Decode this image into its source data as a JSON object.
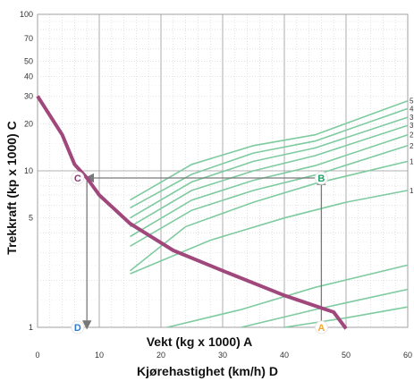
{
  "chart_data": {
    "type": "line",
    "title": "",
    "ylabel": "Trekkraft (kp x 1000) C",
    "xlabel_primary": "Vekt (kg x 1000) A",
    "xlabel_secondary": "Kjørehastighet (km/h) D",
    "yscale": "log",
    "ylim": [
      1,
      100
    ],
    "xlim": [
      0,
      60
    ],
    "x_ticks": [
      "0",
      "10",
      "20",
      "30",
      "40",
      "50",
      "60"
    ],
    "y_ticks": [
      {
        "value": 1,
        "label": "1"
      },
      {
        "value": 5,
        "label": "5"
      },
      {
        "value": 10,
        "label": "10"
      },
      {
        "value": 20,
        "label": "20"
      },
      {
        "value": 30,
        "label": "30"
      },
      {
        "value": 40,
        "label": "40"
      },
      {
        "value": 50,
        "label": "50"
      },
      {
        "value": 70,
        "label": "70"
      },
      {
        "value": 100,
        "label": "100"
      }
    ],
    "grid": true,
    "tractive_effort_curve": {
      "color": "#a0487c",
      "points": [
        [
          0,
          30
        ],
        [
          4,
          17
        ],
        [
          6,
          11
        ],
        [
          8,
          9
        ],
        [
          10,
          7
        ],
        [
          15,
          4.6
        ],
        [
          22,
          3.1
        ],
        [
          30,
          2.3
        ],
        [
          40,
          1.6
        ],
        [
          48,
          1.25
        ],
        [
          50,
          0.98
        ]
      ]
    },
    "gradient_lines": {
      "color": "#7fcba0",
      "end_labels": [
        "5",
        "4",
        "3",
        "3",
        "2",
        "2",
        "1",
        "1"
      ],
      "lines": [
        [
          [
            15,
            6.5
          ],
          [
            25,
            11
          ],
          [
            35,
            14.5
          ],
          [
            45,
            17
          ],
          [
            60,
            28
          ]
        ],
        [
          [
            15,
            5.8
          ],
          [
            25,
            9.5
          ],
          [
            35,
            13
          ],
          [
            45,
            15.5
          ],
          [
            60,
            25
          ]
        ],
        [
          [
            15,
            5.0
          ],
          [
            25,
            8.5
          ],
          [
            35,
            11.5
          ],
          [
            45,
            14
          ],
          [
            60,
            22
          ]
        ],
        [
          [
            15,
            4.4
          ],
          [
            25,
            7.5
          ],
          [
            35,
            10
          ],
          [
            45,
            12.5
          ],
          [
            60,
            19.5
          ]
        ],
        [
          [
            15,
            3.8
          ],
          [
            25,
            6.5
          ],
          [
            35,
            8.7
          ],
          [
            45,
            10.8
          ],
          [
            60,
            17
          ]
        ],
        [
          [
            15,
            3.3
          ],
          [
            25,
            5.6
          ],
          [
            35,
            7.5
          ],
          [
            45,
            9.4
          ],
          [
            60,
            14.5
          ]
        ],
        [
          [
            15,
            2.3
          ],
          [
            24,
            4.4
          ],
          [
            35,
            6.3
          ],
          [
            45,
            8.3
          ],
          [
            60,
            11.5
          ]
        ],
        [
          [
            15,
            2.2
          ],
          [
            28,
            3.6
          ],
          [
            40,
            5.0
          ],
          [
            50,
            6.3
          ],
          [
            60,
            7.5
          ]
        ],
        [
          [
            21,
            1.0
          ],
          [
            33,
            1.3
          ],
          [
            45,
            1.8
          ],
          [
            60,
            2.5
          ]
        ],
        [
          [
            33,
            1.0
          ],
          [
            45,
            1.3
          ],
          [
            60,
            1.75
          ]
        ],
        [
          [
            40,
            1.0
          ],
          [
            50,
            1.15
          ],
          [
            60,
            1.35
          ]
        ]
      ]
    },
    "markers": [
      {
        "label": "A",
        "x": 46,
        "y": 1,
        "color": "#f0a830"
      },
      {
        "label": "B",
        "x": 46,
        "y": 9,
        "color": "#1da36a"
      },
      {
        "label": "C",
        "x": 6.5,
        "y": 9,
        "color": "#8a3d73"
      },
      {
        "label": "D",
        "x": 6.5,
        "y": 1,
        "color": "#2b7bd1"
      }
    ],
    "reading_path": [
      [
        46,
        1
      ],
      [
        46,
        9
      ],
      [
        8,
        9
      ],
      [
        8,
        1
      ]
    ]
  }
}
